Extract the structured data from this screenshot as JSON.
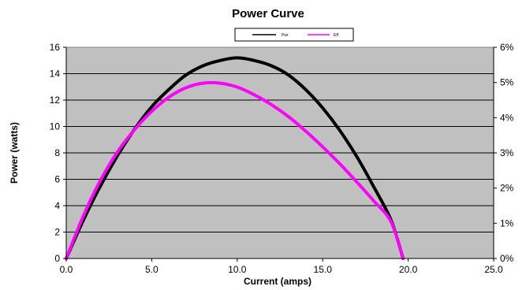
{
  "chart_data": {
    "type": "line",
    "title": "Power Curve",
    "xlabel": "Current (amps)",
    "ylabel": "Power (watts)",
    "xlim": [
      0,
      25
    ],
    "ylim": [
      0,
      16
    ],
    "y2lim": [
      0,
      0.06
    ],
    "x_ticks": [
      "0.0",
      "5.0",
      "10.0",
      "15.0",
      "20.0",
      "25.0"
    ],
    "y_ticks": [
      "0",
      "2",
      "4",
      "6",
      "8",
      "10",
      "12",
      "14",
      "16"
    ],
    "y2_ticks": [
      "0%",
      "1%",
      "2%",
      "3%",
      "4%",
      "5%",
      "6%"
    ],
    "grid": "horizontal",
    "legend_position": "top-center",
    "plot_background": "#c0c0c0",
    "series": [
      {
        "name": "Pwr",
        "axis": "left",
        "color": "#000000",
        "x": [
          0,
          1,
          2,
          3,
          4,
          5,
          6,
          7,
          8,
          9,
          10,
          11,
          12,
          13,
          14,
          15,
          16,
          17,
          18,
          19,
          19.7
        ],
        "values": [
          0,
          2.9,
          5.5,
          7.8,
          9.8,
          11.5,
          12.8,
          13.9,
          14.6,
          15.0,
          15.2,
          15.0,
          14.6,
          13.9,
          12.8,
          11.4,
          9.7,
          7.7,
          5.4,
          2.9,
          0
        ]
      },
      {
        "name": "Eff",
        "axis": "right",
        "color": "#ff00ff",
        "x": [
          0,
          1,
          2,
          3,
          4,
          5,
          6,
          7,
          8,
          9,
          10,
          11,
          12,
          13,
          14,
          15,
          16,
          17,
          18,
          19,
          19.7
        ],
        "values": [
          0,
          0.0121,
          0.0222,
          0.0303,
          0.0366,
          0.0418,
          0.0458,
          0.0485,
          0.0498,
          0.0498,
          0.0487,
          0.0465,
          0.0437,
          0.0403,
          0.0362,
          0.0317,
          0.0269,
          0.0217,
          0.0163,
          0.0104,
          0
        ]
      }
    ]
  }
}
